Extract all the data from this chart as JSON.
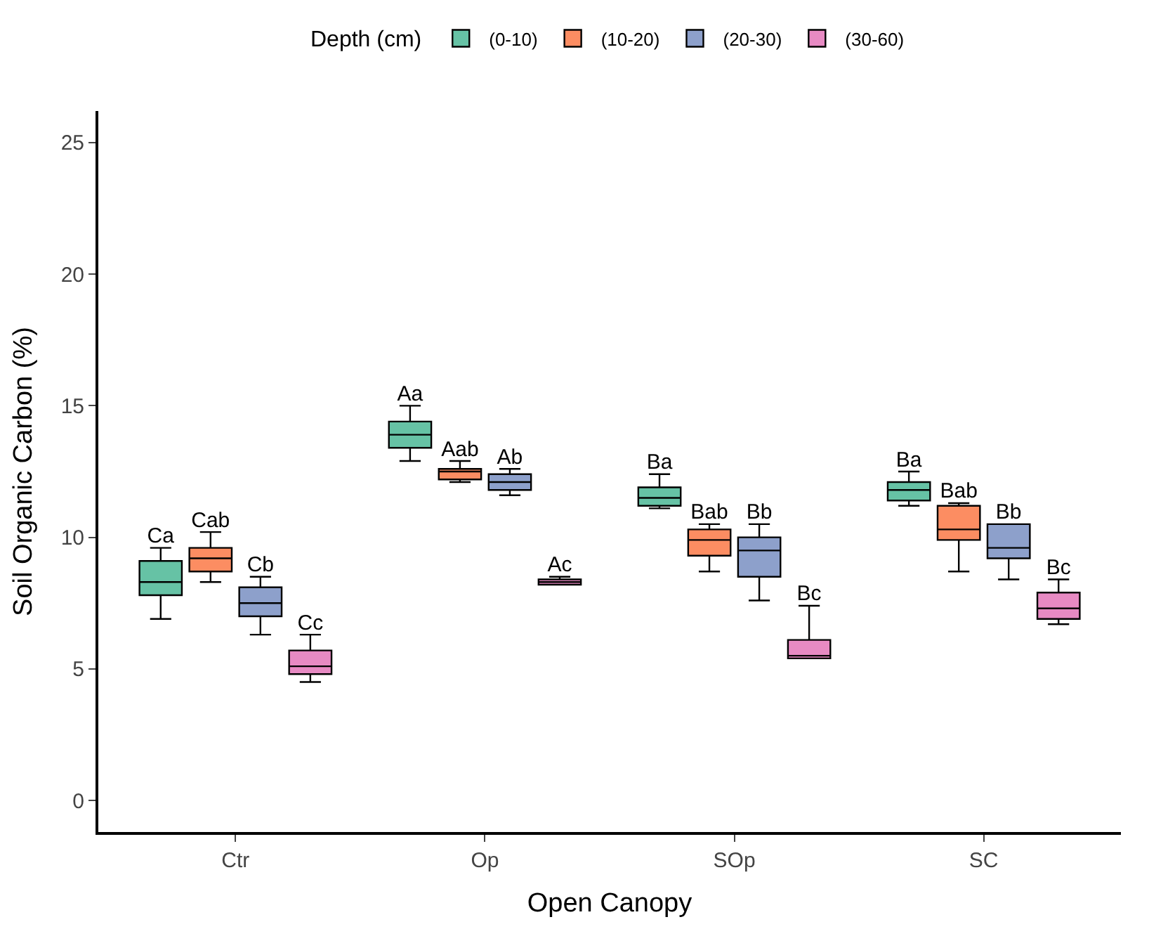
{
  "chart_data": {
    "type": "box",
    "xlabel": "Open Canopy",
    "ylabel": "Soil Organic Carbon (%)",
    "legend_title": "Depth (cm)",
    "legend": "top",
    "categories": [
      "Ctr",
      "Op",
      "SOp",
      "SC"
    ],
    "ylim": [
      -1.2,
      26.2
    ],
    "yticks": [
      0,
      5,
      10,
      15,
      20,
      25
    ],
    "series": [
      {
        "name": "(0-10)",
        "color": "#66c2a5",
        "value_labels": [
          "Ca",
          "Aa",
          "Ba",
          "Ba"
        ],
        "boxes": [
          {
            "low": 6.9,
            "q1": 7.8,
            "median": 8.3,
            "q3": 9.1,
            "high": 9.6
          },
          {
            "low": 12.9,
            "q1": 13.4,
            "median": 13.9,
            "q3": 14.4,
            "high": 15.0
          },
          {
            "low": 11.1,
            "q1": 11.2,
            "median": 11.5,
            "q3": 11.9,
            "high": 12.4
          },
          {
            "low": 11.2,
            "q1": 11.4,
            "median": 11.8,
            "q3": 12.1,
            "high": 12.5
          }
        ]
      },
      {
        "name": "(10-20)",
        "color": "#fc8d62",
        "value_labels": [
          "Cab",
          "Aab",
          "Bab",
          "Bab"
        ],
        "boxes": [
          {
            "low": 8.3,
            "q1": 8.7,
            "median": 9.2,
            "q3": 9.6,
            "high": 10.2
          },
          {
            "low": 12.1,
            "q1": 12.2,
            "median": 12.5,
            "q3": 12.6,
            "high": 12.9
          },
          {
            "low": 8.7,
            "q1": 9.3,
            "median": 9.9,
            "q3": 10.3,
            "high": 10.5
          },
          {
            "low": 8.7,
            "q1": 9.9,
            "median": 10.3,
            "q3": 11.2,
            "high": 11.3
          }
        ]
      },
      {
        "name": "(20-30)",
        "color": "#8da0cb",
        "value_labels": [
          "Cb",
          "Ab",
          "Bb",
          "Bb"
        ],
        "boxes": [
          {
            "low": 6.3,
            "q1": 7.0,
            "median": 7.5,
            "q3": 8.1,
            "high": 8.5
          },
          {
            "low": 11.6,
            "q1": 11.8,
            "median": 12.1,
            "q3": 12.4,
            "high": 12.6
          },
          {
            "low": 7.6,
            "q1": 8.5,
            "median": 9.5,
            "q3": 10.0,
            "high": 10.5
          },
          {
            "low": 8.4,
            "q1": 9.2,
            "median": 9.6,
            "q3": 10.5,
            "high": 10.5
          }
        ]
      },
      {
        "name": "(30-60)",
        "color": "#e78ac3",
        "value_labels": [
          "Cc",
          "Ac",
          "Bc",
          "Bc"
        ],
        "boxes": [
          {
            "low": 4.5,
            "q1": 4.8,
            "median": 5.1,
            "q3": 5.7,
            "high": 6.3
          },
          {
            "low": 8.2,
            "q1": 8.2,
            "median": 8.3,
            "q3": 8.4,
            "high": 8.5
          },
          {
            "low": 5.4,
            "q1": 5.4,
            "median": 5.5,
            "q3": 6.1,
            "high": 7.4
          },
          {
            "low": 6.7,
            "q1": 6.9,
            "median": 7.3,
            "q3": 7.9,
            "high": 8.4
          }
        ]
      }
    ]
  }
}
